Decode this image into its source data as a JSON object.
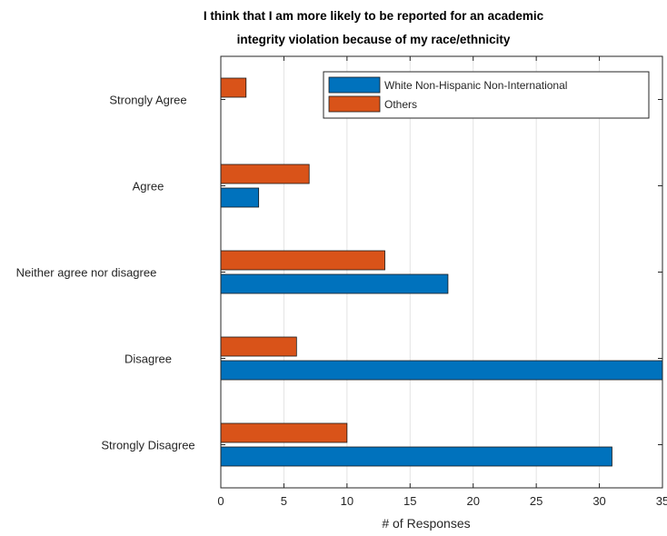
{
  "chart_data": {
    "type": "bar",
    "orientation": "horizontal",
    "title": "I think that I am more likely to be reported for an academic integrity violation because of my race/ethnicity",
    "title_lines": [
      "I think that I am more likely to be reported for an academic",
      "integrity violation because of my race/ethnicity"
    ],
    "xlabel": "# of Responses",
    "ylabel": "",
    "xlim": [
      0,
      35
    ],
    "x_ticks": [
      0,
      5,
      10,
      15,
      20,
      25,
      30,
      35
    ],
    "categories": [
      "Strongly Agree",
      "Agree",
      "Neither agree nor disagree",
      "Disagree",
      "Strongly Disagree"
    ],
    "series": [
      {
        "name": "White Non-Hispanic Non-International",
        "color": "#0072BD",
        "values": [
          0,
          3,
          18,
          37,
          31
        ]
      },
      {
        "name": "Others",
        "color": "#D95319",
        "values": [
          2,
          7,
          13,
          6,
          10
        ]
      }
    ],
    "grid": "vertical",
    "legend_position": "top-right"
  }
}
